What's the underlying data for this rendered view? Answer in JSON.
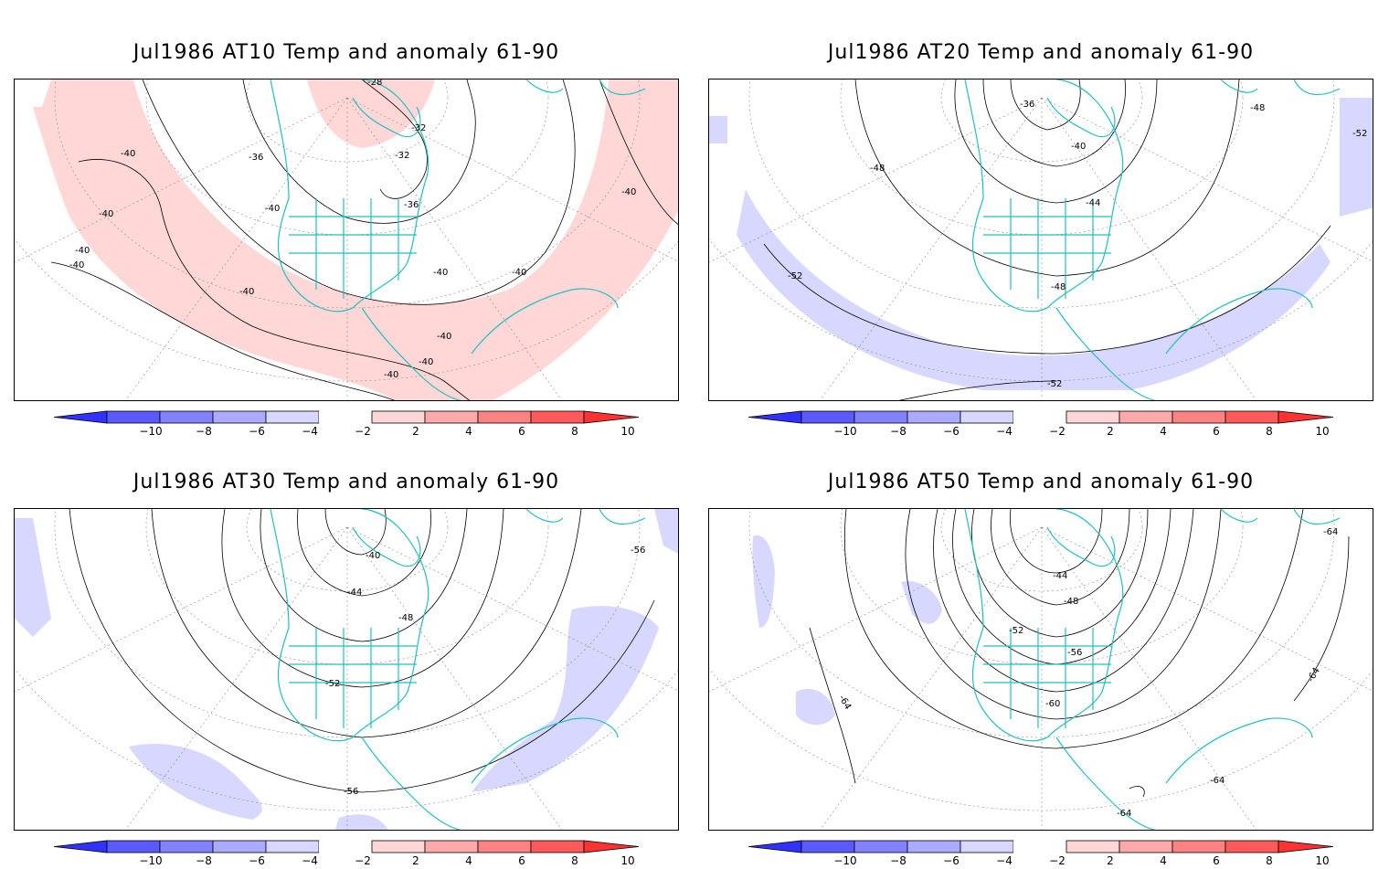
{
  "colorbar": {
    "labels": [
      "−10",
      "−8",
      "−6",
      "−4",
      "−2",
      "2",
      "4",
      "6",
      "8",
      "10"
    ],
    "colors": [
      "#3232ff",
      "#5a5aff",
      "#8282ff",
      "#aaaaff",
      "#d7d7ff",
      "#ffffff",
      "#ffd7d7",
      "#ffaaaa",
      "#ff8282",
      "#ff5a5a",
      "#ff3232"
    ]
  },
  "panels": [
    {
      "title": "Jul1986 AT10 Temp and anomaly 61-90",
      "contour_labels": [
        "-28",
        "-32",
        "-32",
        "-36",
        "-36",
        "-40",
        "-40",
        "-40",
        "-40",
        "-40",
        "-40",
        "-40",
        "-40",
        "-40",
        "-40",
        "-40",
        "-40"
      ],
      "anomaly": "positive"
    },
    {
      "title": "Jul1986 AT20 Temp and anomaly 61-90",
      "contour_labels": [
        "-36",
        "-40",
        "-44",
        "-48",
        "-48",
        "-48",
        "-52",
        "-52",
        "-52"
      ],
      "anomaly": "negative"
    },
    {
      "title": "Jul1986 AT30 Temp and anomaly 61-90",
      "contour_labels": [
        "-40",
        "-44",
        "-48",
        "-52",
        "-56",
        "-56"
      ],
      "anomaly": "negative"
    },
    {
      "title": "Jul1986 AT50 Temp and anomaly 61-90",
      "contour_labels": [
        "-44",
        "-48",
        "-52",
        "-56",
        "-60",
        "-64",
        "-64",
        "-64",
        "-64",
        "-64"
      ],
      "anomaly": "negative"
    }
  ]
}
